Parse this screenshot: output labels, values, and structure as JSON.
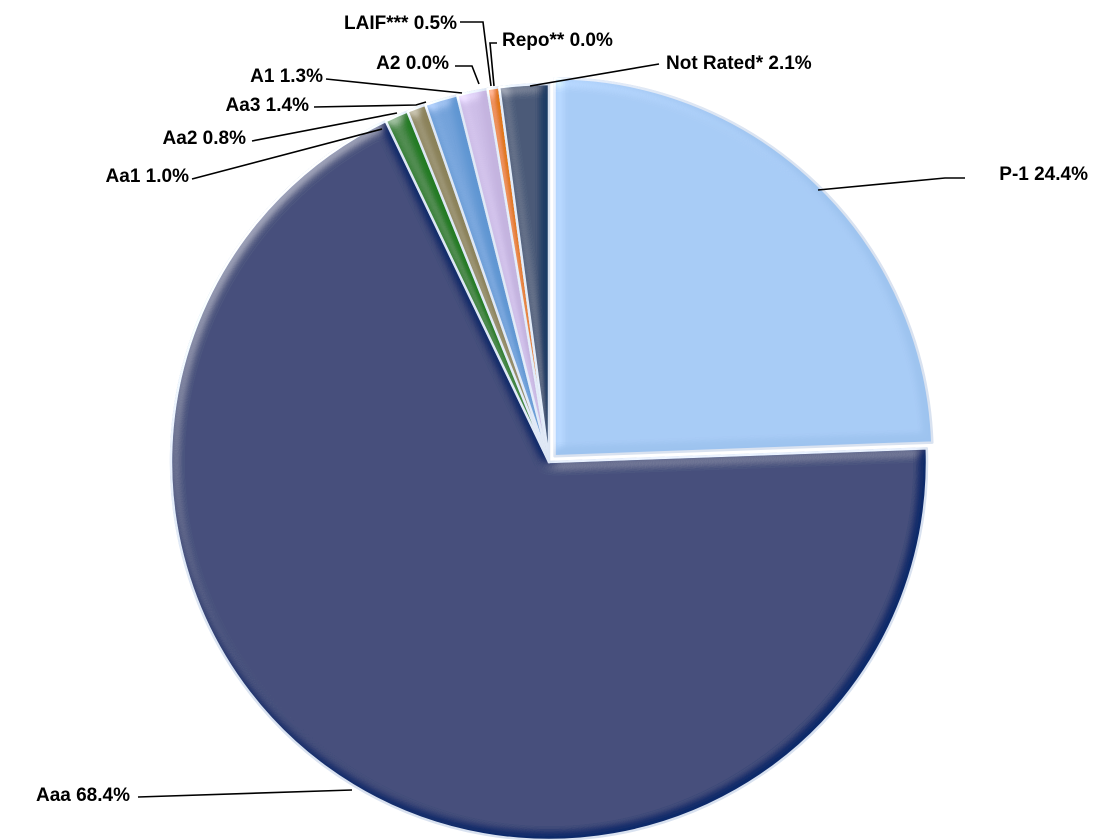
{
  "chart_data": {
    "type": "pie",
    "title": "",
    "legend": "none",
    "slices": [
      {
        "name": "P-1",
        "value": 24.4,
        "label": "P-1 24.4%",
        "color": "#9dc3ef"
      },
      {
        "name": "Aaa",
        "value": 68.4,
        "label": "Aaa 68.4%",
        "color": "#0f2a6a"
      },
      {
        "name": "Aa1",
        "value": 1.0,
        "label": "Aa1 1.0%",
        "color": "#1e7a1e"
      },
      {
        "name": "Aa2",
        "value": 0.8,
        "label": "Aa2 0.8%",
        "color": "#8a8158"
      },
      {
        "name": "Aa3",
        "value": 1.4,
        "label": "Aa3 1.4%",
        "color": "#5f96d2"
      },
      {
        "name": "A1",
        "value": 1.3,
        "label": "A1 1.3%",
        "color": "#c4b3df"
      },
      {
        "name": "A2",
        "value": 0.0,
        "label": "A2 0.0%",
        "color": "#8a1b1b"
      },
      {
        "name": "LAIF***",
        "value": 0.5,
        "label": "LAIF*** 0.5%",
        "color": "#e07512"
      },
      {
        "name": "Repo**",
        "value": 0.0,
        "label": "Repo** 0.0%",
        "color": "#e8c23a"
      },
      {
        "name": "Not Rated*",
        "value": 2.1,
        "label": "Not Rated* 2.1%",
        "color": "#1d3d66"
      }
    ]
  }
}
